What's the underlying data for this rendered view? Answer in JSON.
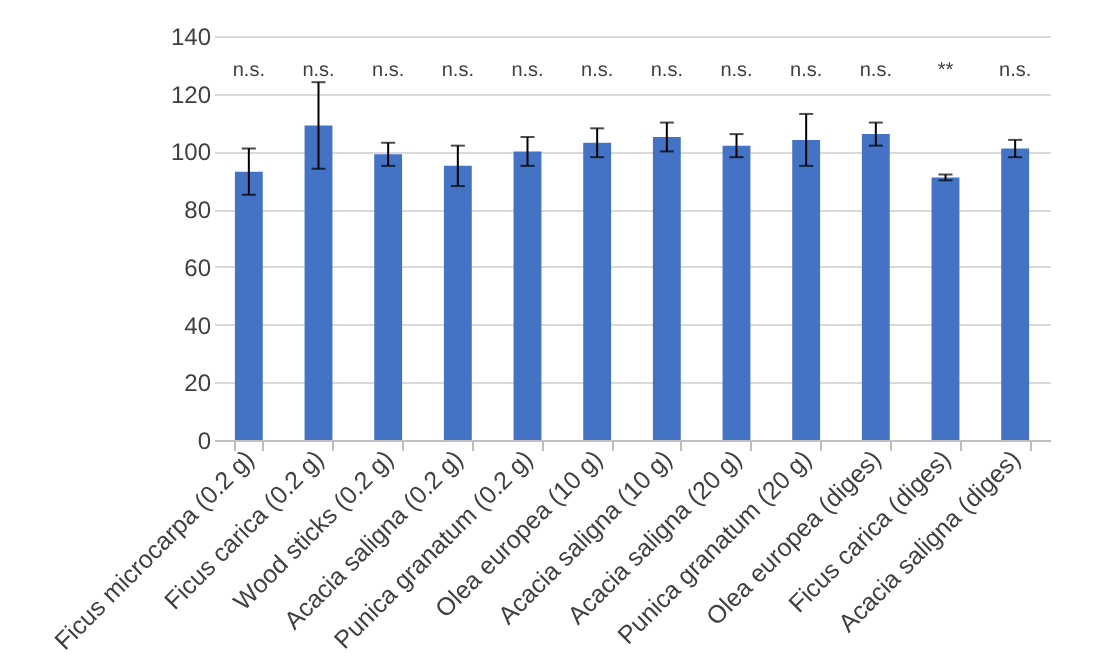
{
  "chart_data": {
    "type": "bar",
    "categories": [
      "Ficus microcarpa (0.2 g)",
      "Ficus carica (0.2 g)",
      "Wood sticks (0.2 g)",
      "Acacia saligna (0.2 g)",
      "Punica granatum (0.2 g)",
      "Olea europea (10 g)",
      "Acacia saligna (10 g)",
      "Acacia saligna (20 g)",
      "Punica granatum (20 g)",
      "Olea europea (diges)",
      "Ficus carica (diges)",
      "Acacia saligna (diges)"
    ],
    "series": [
      {
        "color": "#4472c4",
        "values": [
          93,
          109,
          99,
          95,
          100,
          103,
          105,
          102,
          104,
          106,
          91,
          101
        ],
        "errors": [
          8,
          15,
          4,
          7,
          5,
          5,
          5,
          4,
          9,
          4,
          1,
          3
        ]
      }
    ],
    "annotations": [
      "n.s.",
      "n.s.",
      "n.s.",
      "n.s.",
      "n.s.",
      "n.s.",
      "n.s.",
      "n.s.",
      "n.s.",
      "n.s.",
      "**",
      "n.s."
    ],
    "ylim": [
      0,
      140
    ],
    "yticks": [
      0,
      20,
      40,
      60,
      80,
      100,
      120,
      140
    ],
    "grid": "y",
    "legend": false
  }
}
